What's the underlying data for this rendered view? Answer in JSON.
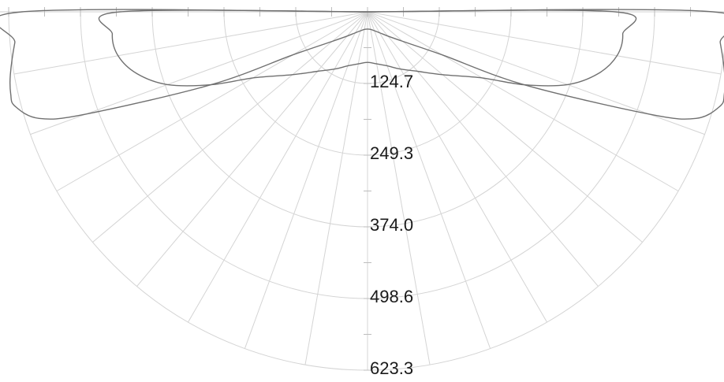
{
  "chart_data": {
    "type": "polar-line",
    "r_ticks": [
      "124.7",
      "249.3",
      "374.0",
      "498.6",
      "623.3"
    ],
    "r_max": 623.3,
    "angle_grid_step_deg": 10,
    "angle_range_deg": [
      -90,
      90
    ],
    "series": [
      {
        "values_by_angle_deg": [
          [
            -90,
            600
          ],
          [
            -85,
            615
          ],
          [
            -80,
            630
          ],
          [
            -77,
            636
          ],
          [
            -75,
            634
          ],
          [
            -72,
            600
          ],
          [
            -70,
            520
          ],
          [
            -65,
            300
          ],
          [
            -60,
            150
          ],
          [
            -50,
            80
          ],
          [
            -40,
            55
          ],
          [
            -30,
            42
          ],
          [
            -20,
            35
          ],
          [
            -10,
            31
          ],
          [
            0,
            30
          ],
          [
            10,
            31
          ],
          [
            20,
            35
          ],
          [
            30,
            42
          ],
          [
            40,
            55
          ],
          [
            50,
            80
          ],
          [
            60,
            150
          ],
          [
            65,
            300
          ],
          [
            70,
            520
          ],
          [
            72,
            600
          ],
          [
            75,
            634
          ],
          [
            77,
            636
          ],
          [
            80,
            630
          ],
          [
            85,
            615
          ],
          [
            90,
            600
          ]
        ]
      },
      {
        "values_by_angle_deg": [
          [
            -90,
            430
          ],
          [
            -85,
            445
          ],
          [
            -80,
            440
          ],
          [
            -75,
            415
          ],
          [
            -70,
            370
          ],
          [
            -65,
            300
          ],
          [
            -60,
            230
          ],
          [
            -50,
            170
          ],
          [
            -40,
            135
          ],
          [
            -30,
            115
          ],
          [
            -20,
            100
          ],
          [
            -10,
            92
          ],
          [
            0,
            88
          ],
          [
            10,
            92
          ],
          [
            20,
            100
          ],
          [
            30,
            115
          ],
          [
            40,
            135
          ],
          [
            50,
            170
          ],
          [
            60,
            230
          ],
          [
            65,
            300
          ],
          [
            70,
            370
          ],
          [
            75,
            415
          ],
          [
            80,
            440
          ],
          [
            85,
            445
          ],
          [
            90,
            430
          ]
        ]
      }
    ]
  }
}
